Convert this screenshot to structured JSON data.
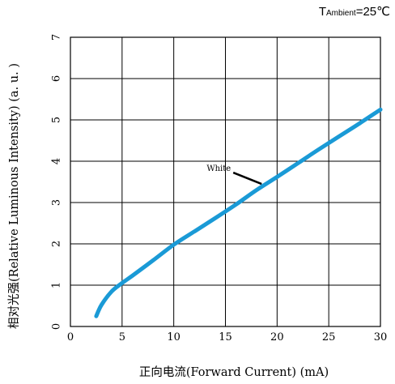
{
  "chart_data": {
    "type": "line",
    "condition": {
      "prefix": "T",
      "subscript": "Ambient",
      "suffix": "=25℃"
    },
    "xlabel": "正向电流(Forward  Current) (mA)",
    "ylabel": "相对光强(Relative  Luminous  Intensity) (a. u. )",
    "xlim": [
      0,
      30
    ],
    "ylim": [
      0,
      7
    ],
    "x_ticks": [
      "0",
      "5",
      "10",
      "15",
      "20",
      "25",
      "30"
    ],
    "y_ticks": [
      "0",
      "1",
      "2",
      "3",
      "4",
      "5",
      "6",
      "7"
    ],
    "grid": true,
    "series": [
      {
        "name": "White",
        "color": "#1a9ad6",
        "x": [
          2.5,
          3,
          4,
          5,
          6,
          8,
          10,
          12,
          14,
          16,
          18,
          20,
          22,
          24,
          26,
          28,
          30
        ],
        "y": [
          0.25,
          0.52,
          0.85,
          1.05,
          1.23,
          1.6,
          1.98,
          2.3,
          2.62,
          2.95,
          3.3,
          3.62,
          3.95,
          4.28,
          4.6,
          4.92,
          5.25
        ]
      }
    ],
    "annotations": [
      {
        "text": "White",
        "series": "White",
        "x": 18.5,
        "y": 3.45
      }
    ]
  }
}
